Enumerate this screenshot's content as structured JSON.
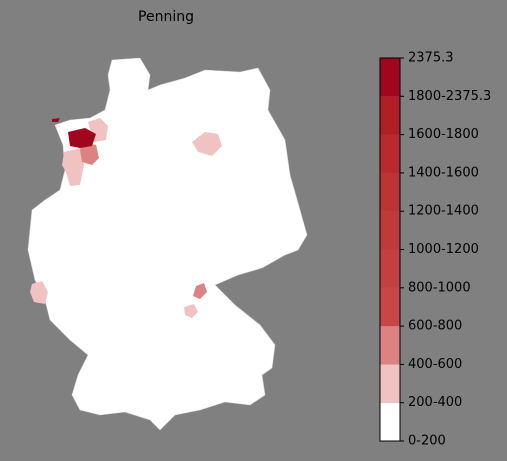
{
  "title": "Penning",
  "colorbar": {
    "labels": [
      "0-200",
      "200-400",
      "400-600",
      "600-800",
      "800-1000",
      "1000-1200",
      "1200-1400",
      "1400-1600",
      "1600-1800",
      "1800-2375.3",
      "2375.3"
    ],
    "colors": [
      "#ffffff",
      "#f0c2c2",
      "#dc8282",
      "#c84646",
      "#c44040",
      "#c03a3a",
      "#bc3434",
      "#b82a2e",
      "#b01e26",
      "#a0061e"
    ]
  }
}
